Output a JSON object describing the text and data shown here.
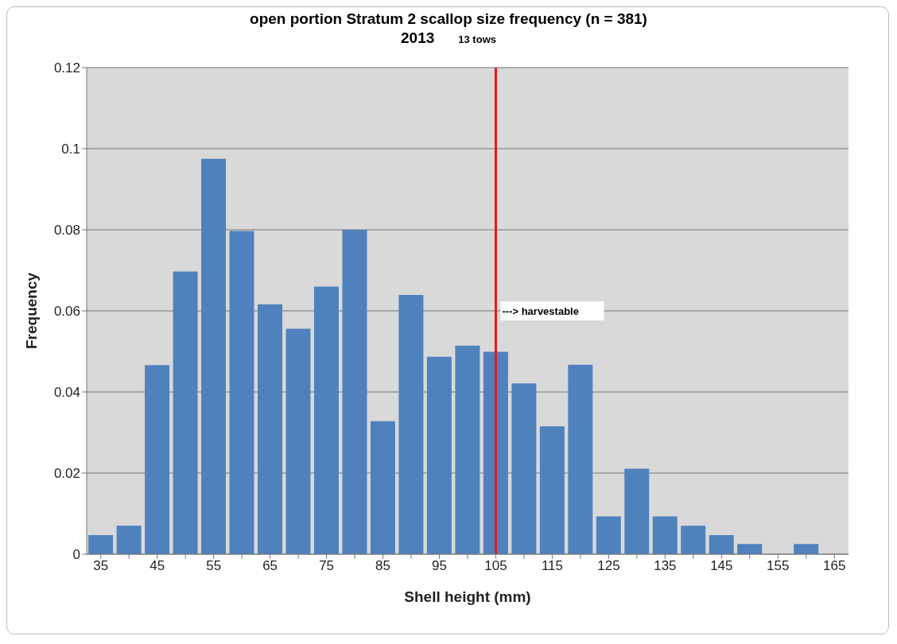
{
  "chart_data": {
    "type": "bar",
    "title": "open portion Stratum 2 scallop size frequency (n = 381)",
    "subtitle": "2013",
    "xlabel": "Shell height (mm)",
    "ylabel": "Frequency",
    "categories": [
      "35",
      null,
      "45",
      null,
      "55",
      null,
      "65",
      null,
      "75",
      null,
      "85",
      null,
      "95",
      null,
      "105",
      null,
      "115",
      null,
      "125",
      null,
      "135",
      null,
      "145",
      null,
      "155",
      null,
      "165"
    ],
    "values": [
      0.0047,
      0.007,
      0.0466,
      0.0697,
      0.0975,
      0.0797,
      0.0616,
      0.0556,
      0.066,
      0.08,
      0.0328,
      0.0639,
      0.0487,
      0.0514,
      0.0499,
      0.0421,
      0.0315,
      0.0467,
      0.0093,
      0.0211,
      0.0093,
      0.007,
      0.0047,
      0.0025,
      0,
      0.0025,
      0
    ],
    "color": "#4f81bd",
    "ylim": [
      0,
      0.12
    ],
    "yticks": [
      0,
      0.02,
      0.04,
      0.06,
      0.08,
      0.1,
      0.12
    ],
    "grid": "y",
    "ref_lines": [
      {
        "axis": "x",
        "value": "105",
        "color": "#e41a1c"
      }
    ],
    "annotations": [
      "13 tows",
      {
        "text": "---> harvestable",
        "x": "105",
        "y": 0.06
      }
    ]
  }
}
